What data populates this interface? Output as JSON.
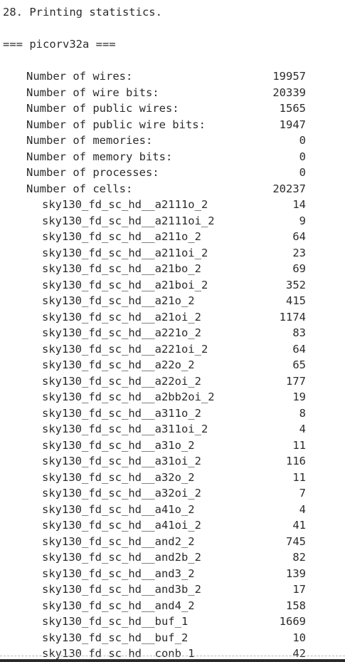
{
  "header": {
    "step_title": "28. Printing statistics.",
    "module_title": "=== picorv32a ==="
  },
  "stats": [
    {
      "label": "Number of wires:",
      "value": "19957"
    },
    {
      "label": "Number of wire bits:",
      "value": "20339"
    },
    {
      "label": "Number of public wires:",
      "value": "1565"
    },
    {
      "label": "Number of public wire bits:",
      "value": "1947"
    },
    {
      "label": "Number of memories:",
      "value": "0"
    },
    {
      "label": "Number of memory bits:",
      "value": "0"
    },
    {
      "label": "Number of processes:",
      "value": "0"
    },
    {
      "label": "Number of cells:",
      "value": "20237"
    }
  ],
  "cells": [
    {
      "name": "sky130_fd_sc_hd__a2111o_2",
      "count": "14"
    },
    {
      "name": "sky130_fd_sc_hd__a2111oi_2",
      "count": "9"
    },
    {
      "name": "sky130_fd_sc_hd__a211o_2",
      "count": "64"
    },
    {
      "name": "sky130_fd_sc_hd__a211oi_2",
      "count": "23"
    },
    {
      "name": "sky130_fd_sc_hd__a21bo_2",
      "count": "69"
    },
    {
      "name": "sky130_fd_sc_hd__a21boi_2",
      "count": "352"
    },
    {
      "name": "sky130_fd_sc_hd__a21o_2",
      "count": "415"
    },
    {
      "name": "sky130_fd_sc_hd__a21oi_2",
      "count": "1174"
    },
    {
      "name": "sky130_fd_sc_hd__a221o_2",
      "count": "83"
    },
    {
      "name": "sky130_fd_sc_hd__a221oi_2",
      "count": "64"
    },
    {
      "name": "sky130_fd_sc_hd__a22o_2",
      "count": "65"
    },
    {
      "name": "sky130_fd_sc_hd__a22oi_2",
      "count": "177"
    },
    {
      "name": "sky130_fd_sc_hd__a2bb2oi_2",
      "count": "19"
    },
    {
      "name": "sky130_fd_sc_hd__a311o_2",
      "count": "8"
    },
    {
      "name": "sky130_fd_sc_hd__a311oi_2",
      "count": "4"
    },
    {
      "name": "sky130_fd_sc_hd__a31o_2",
      "count": "11"
    },
    {
      "name": "sky130_fd_sc_hd__a31oi_2",
      "count": "116"
    },
    {
      "name": "sky130_fd_sc_hd__a32o_2",
      "count": "11"
    },
    {
      "name": "sky130_fd_sc_hd__a32oi_2",
      "count": "7"
    },
    {
      "name": "sky130_fd_sc_hd__a41o_2",
      "count": "4"
    },
    {
      "name": "sky130_fd_sc_hd__a41oi_2",
      "count": "41"
    },
    {
      "name": "sky130_fd_sc_hd__and2_2",
      "count": "745"
    },
    {
      "name": "sky130_fd_sc_hd__and2b_2",
      "count": "82"
    },
    {
      "name": "sky130_fd_sc_hd__and3_2",
      "count": "139"
    },
    {
      "name": "sky130_fd_sc_hd__and3b_2",
      "count": "17"
    },
    {
      "name": "sky130_fd_sc_hd__and4_2",
      "count": "158"
    },
    {
      "name": "sky130_fd_sc_hd__buf_1",
      "count": "1669"
    },
    {
      "name": "sky130_fd_sc_hd__buf_2",
      "count": "10"
    },
    {
      "name": "sky130_fd_sc_hd__conb_1",
      "count": "42"
    }
  ]
}
